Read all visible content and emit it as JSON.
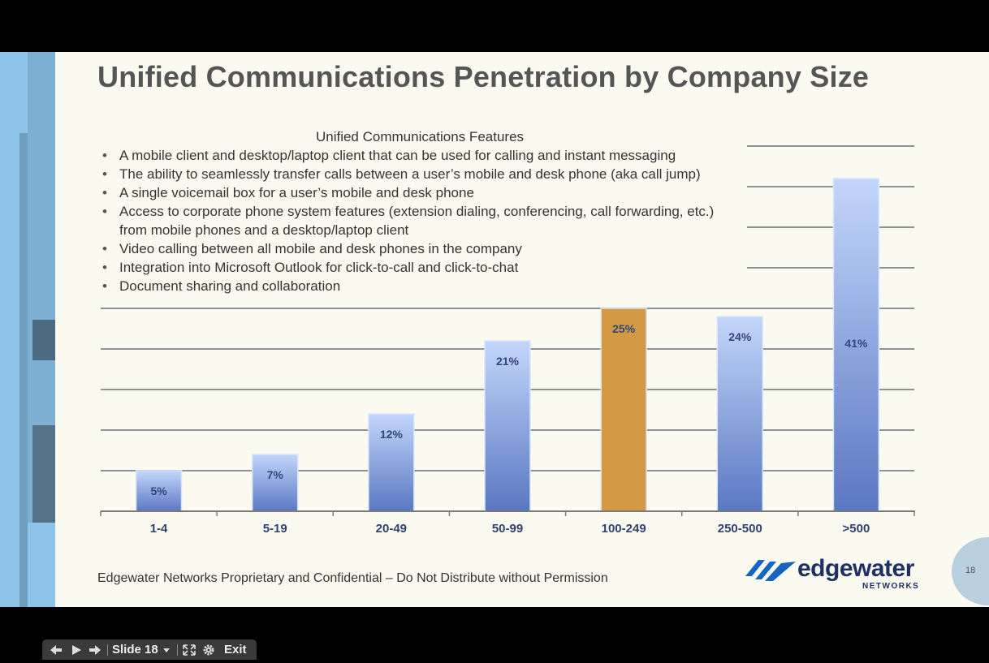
{
  "slide": {
    "title": "Unified Communications Penetration by Company Size",
    "features_title": "Unified Communications Features",
    "features": [
      "A mobile client and desktop/laptop client that can be used for calling and instant messaging",
      "The ability to seamlessly transfer calls between a user’s mobile and desk phone (aka call jump)",
      "A single voicemail box for a user’s mobile and desk phone",
      "Access to corporate phone system features (extension dialing, conferencing, call forwarding, etc.) from mobile phones and a desktop/laptop client",
      "Video calling between all mobile and desk phones in the company",
      "Integration into Microsoft Outlook for click-to-call and click-to-chat",
      "Document sharing and collaboration"
    ],
    "footer": "Edgewater Networks Proprietary and Confidential – Do Not Distribute without Permission",
    "logo_text": "edgewater",
    "logo_subtext": "NETWORKS",
    "page_number": "18"
  },
  "chart_data": {
    "type": "bar",
    "categories": [
      "1-4",
      "5-19",
      "20-49",
      "50-99",
      "100-249",
      "250-500",
      ">500"
    ],
    "values": [
      5,
      7,
      12,
      21,
      25,
      24,
      41
    ],
    "labels": [
      "5%",
      "7%",
      "12%",
      "21%",
      "25%",
      "24%",
      "41%"
    ],
    "highlight_index": 4,
    "ylim": [
      0,
      45
    ],
    "grid": true,
    "colors": {
      "bar_top": "#c3d6fb",
      "bar_bottom": "#5a78c2",
      "highlight": "#d19a43",
      "grid": "#8c9396"
    }
  },
  "controls": {
    "slide_label": "Slide 18",
    "exit_label": "Exit",
    "prev_icon": "prev-arrow-icon",
    "play_icon": "play-icon",
    "next_icon": "next-arrow-icon",
    "fullscreen_icon": "fullscreen-icon",
    "settings_icon": "gear-icon"
  }
}
